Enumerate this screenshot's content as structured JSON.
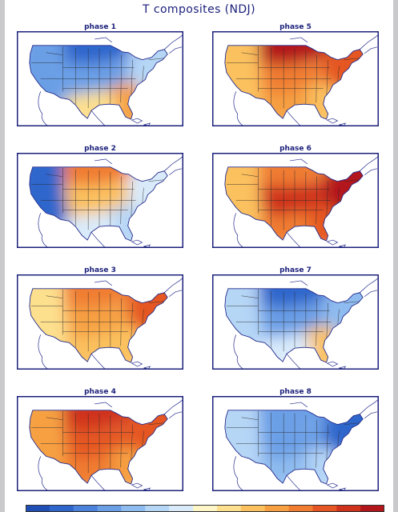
{
  "title": "T composites (NDJ)",
  "panels": [
    {
      "label": "phase 1",
      "anomaly": {
        "west": -0.6,
        "north": -0.8,
        "central": -0.5,
        "east": -0.3,
        "southeast": 0.4,
        "south": 0.1
      }
    },
    {
      "label": "phase 2",
      "anomaly": {
        "west": -0.8,
        "north": 0.5,
        "central": 0.3,
        "east": -0.2,
        "southeast": -0.3,
        "south": -0.2
      }
    },
    {
      "label": "phase 3",
      "anomaly": {
        "west": 0.1,
        "north": 0.5,
        "central": 0.4,
        "east": 0.6,
        "southeast": 0.3,
        "south": 0.3
      }
    },
    {
      "label": "phase 4",
      "anomaly": {
        "west": 0.4,
        "north": 0.8,
        "central": 0.7,
        "east": 0.6,
        "southeast": 0.4,
        "south": 0.5
      }
    },
    {
      "label": "phase 5",
      "anomaly": {
        "west": 0.2,
        "north": 0.9,
        "central": 0.5,
        "east": 0.6,
        "southeast": 0.3,
        "south": 0.4
      }
    },
    {
      "label": "phase 6",
      "anomaly": {
        "west": 0.3,
        "north": 0.5,
        "central": 0.8,
        "east": 0.9,
        "southeast": 0.6,
        "south": 0.5
      }
    },
    {
      "label": "phase 7",
      "anomaly": {
        "west": -0.3,
        "north": -0.8,
        "central": -0.5,
        "east": -0.4,
        "southeast": 0.3,
        "south": -0.2
      }
    },
    {
      "label": "phase 8",
      "anomaly": {
        "west": -0.3,
        "north": -0.6,
        "central": -0.6,
        "east": -0.8,
        "southeast": -0.3,
        "south": -0.4
      }
    }
  ],
  "colorbar": [
    "#1f4fb5",
    "#2f66cc",
    "#4a82dc",
    "#6a9fe6",
    "#8fbcf0",
    "#b6d6f6",
    "#d9ebfb",
    "#fff6c8",
    "#fde08e",
    "#fbc15f",
    "#f6a042",
    "#f07d30",
    "#e55624",
    "#cf321b",
    "#b3161a"
  ],
  "colors": {
    "border": "#1a1f7a",
    "coast": "#232b8a",
    "states": "#2a2a2a",
    "ocean": "#ffffff"
  }
}
